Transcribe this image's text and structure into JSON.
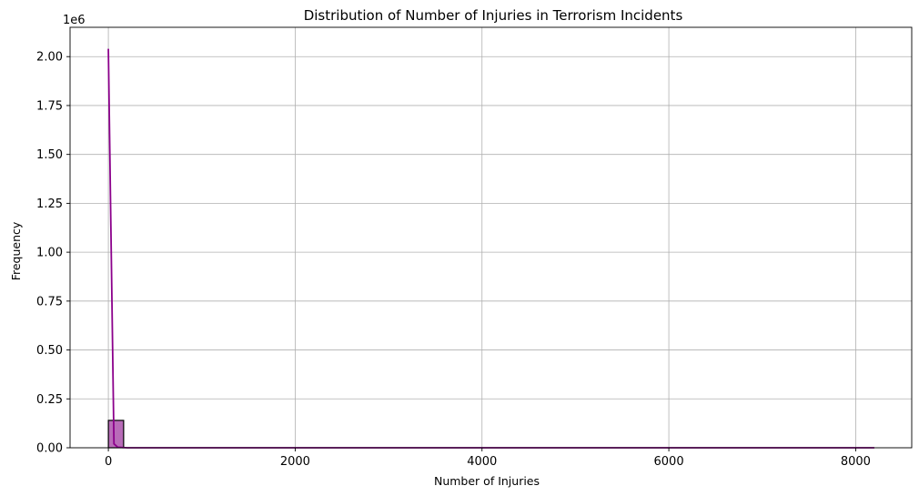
{
  "chart_data": {
    "type": "bar",
    "title": "Distribution of Number of Injuries in Terrorism Incidents",
    "xlabel": "Number of Injuries",
    "ylabel": "Frequency",
    "y_offset_label": "1e6",
    "xlim": [
      -410,
      8600
    ],
    "ylim": [
      0,
      2150000
    ],
    "x_ticks": [
      0,
      2000,
      4000,
      6000,
      8000
    ],
    "x_tick_labels": [
      "0",
      "2000",
      "4000",
      "6000",
      "8000"
    ],
    "y_ticks": [
      0,
      250000,
      500000,
      750000,
      1000000,
      1250000,
      1500000,
      1750000,
      2000000
    ],
    "y_tick_labels": [
      "0.00",
      "0.25",
      "0.50",
      "0.75",
      "1.00",
      "1.25",
      "1.50",
      "1.75",
      "2.00"
    ],
    "grid": true,
    "bar_color": "#b464b4",
    "bar_edge_color": "#000000",
    "kde_color": "#8b008b",
    "bins": [
      {
        "x0": 0,
        "x1": 163.4,
        "count": 140000
      },
      {
        "x0": 163.4,
        "x1": 8170,
        "count": 0
      }
    ],
    "kde_curve": [
      {
        "x": 0,
        "y": 2040000
      },
      {
        "x": 60,
        "y": 20000
      },
      {
        "x": 100,
        "y": 3000
      },
      {
        "x": 200,
        "y": 0
      },
      {
        "x": 8200,
        "y": 0
      }
    ]
  }
}
